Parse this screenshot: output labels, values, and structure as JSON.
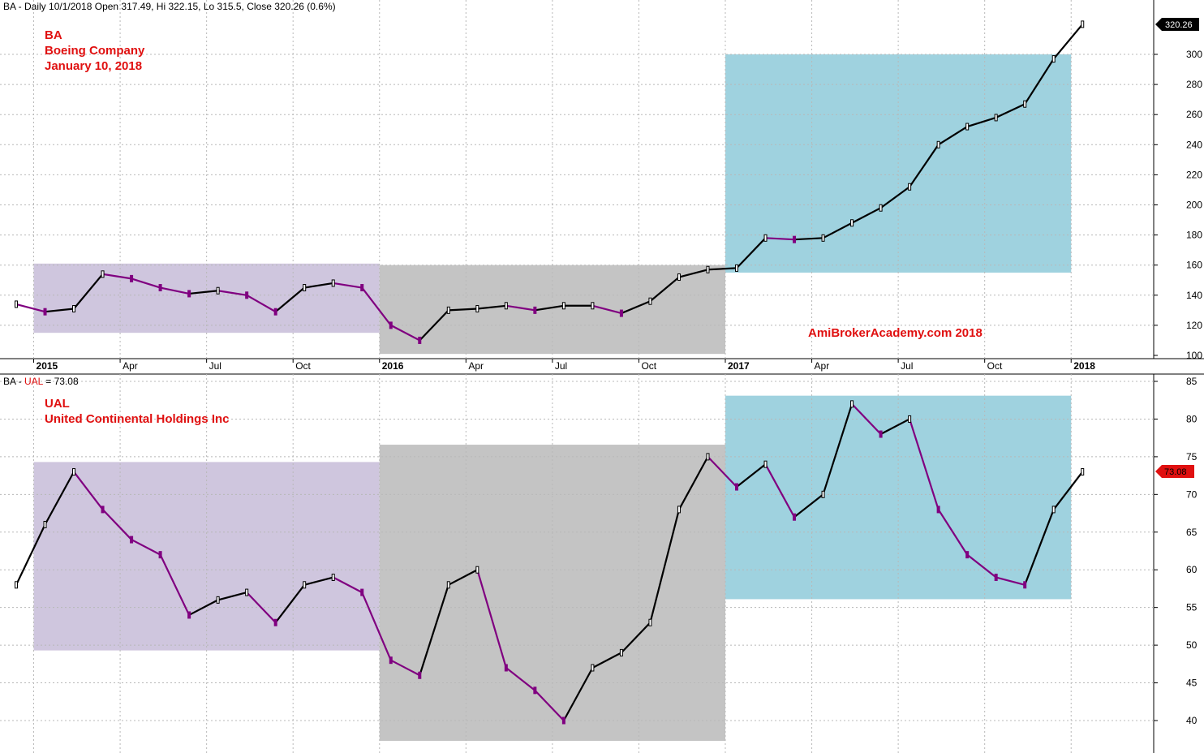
{
  "colors": {
    "background": "#ffffff",
    "price_up": "#000000",
    "price_down": "#800080",
    "box_purple": "#cfc6de",
    "box_gray": "#c4c4c4",
    "box_blue": "#9fd2df",
    "label_red": "#e01010",
    "grid": "#b8b8b8",
    "price_tag_bg": "#000000",
    "price_tag_red": "#e01010"
  },
  "chart_data": [
    {
      "type": "line",
      "panel": "top",
      "header": "BA - Daily 10/1/2018 Open 317.49, Hi 322.15, Lo 315.5, Close 320.26 (0.6%)",
      "annotation": [
        "BA",
        "Boeing Company",
        "January 10, 2018"
      ],
      "watermark": "AmiBrokerAcademy.com  2018",
      "price_tag": "320.26",
      "ylim": [
        100,
        320
      ],
      "y_ticks": [
        100,
        120,
        140,
        160,
        180,
        200,
        220,
        240,
        260,
        280,
        300
      ],
      "x_ticks": [
        "2015",
        "Apr",
        "Jul",
        "Oct",
        "2016",
        "Apr",
        "Jul",
        "Oct",
        "2017",
        "Apr",
        "Jul",
        "Oct",
        "2018"
      ],
      "series": [
        {
          "x": [
            "2014-12",
            "2015-01",
            "2015-02",
            "2015-03",
            "2015-04",
            "2015-05",
            "2015-06",
            "2015-07",
            "2015-08",
            "2015-09",
            "2015-10",
            "2015-11",
            "2015-12",
            "2016-01",
            "2016-02",
            "2016-03",
            "2016-04",
            "2016-05",
            "2016-06",
            "2016-07",
            "2016-08",
            "2016-09",
            "2016-10",
            "2016-11",
            "2016-12",
            "2017-01",
            "2017-02",
            "2017-03",
            "2017-04",
            "2017-05",
            "2017-06",
            "2017-07",
            "2017-08",
            "2017-09",
            "2017-10",
            "2017-11",
            "2017-12",
            "2018-01"
          ],
          "values": [
            134,
            129,
            131,
            154,
            151,
            145,
            141,
            143,
            140,
            129,
            145,
            148,
            145,
            120,
            110,
            130,
            131,
            133,
            130,
            133,
            133,
            128,
            136,
            152,
            157,
            158,
            178,
            177,
            178,
            188,
            198,
            212,
            240,
            252,
            258,
            267,
            297,
            320
          ]
        }
      ],
      "ranges": [
        {
          "from": "2015-01",
          "to": "2015-12",
          "low": 115,
          "high": 161
        },
        {
          "from": "2016-01",
          "to": "2016-12",
          "low": 101,
          "high": 160
        },
        {
          "from": "2017-01",
          "to": "2017-12",
          "low": 155,
          "high": 300
        }
      ]
    },
    {
      "type": "line",
      "panel": "bottom",
      "header_prefix": "BA - ",
      "header_symbol": "UAL",
      "header_suffix": " = 73.08",
      "annotation": [
        "UAL",
        "United Continental Holdings Inc"
      ],
      "price_tag": "73.08",
      "ylim": [
        37,
        86
      ],
      "y_ticks": [
        40,
        45,
        50,
        55,
        60,
        65,
        70,
        75,
        80,
        85
      ],
      "series": [
        {
          "x": [
            "2014-12",
            "2015-01",
            "2015-02",
            "2015-03",
            "2015-04",
            "2015-05",
            "2015-06",
            "2015-07",
            "2015-08",
            "2015-09",
            "2015-10",
            "2015-11",
            "2015-12",
            "2016-01",
            "2016-02",
            "2016-03",
            "2016-04",
            "2016-05",
            "2016-06",
            "2016-07",
            "2016-08",
            "2016-09",
            "2016-10",
            "2016-11",
            "2016-12",
            "2017-01",
            "2017-02",
            "2017-03",
            "2017-04",
            "2017-05",
            "2017-06",
            "2017-07",
            "2017-08",
            "2017-09",
            "2017-10",
            "2017-11",
            "2017-12",
            "2018-01"
          ],
          "values": [
            58,
            66,
            73,
            68,
            64,
            62,
            54,
            56,
            57,
            53,
            58,
            59,
            57,
            48,
            46,
            58,
            60,
            47,
            44,
            40,
            47,
            49,
            53,
            68,
            75,
            71,
            74,
            67,
            70,
            82,
            78,
            80,
            68,
            62,
            59,
            58,
            68,
            73
          ]
        }
      ],
      "ranges": [
        {
          "from": "2015-01",
          "to": "2015-12",
          "low": 49.3,
          "high": 74.3
        },
        {
          "from": "2016-01",
          "to": "2016-12",
          "low": 37.3,
          "high": 76.6
        },
        {
          "from": "2017-01",
          "to": "2017-12",
          "low": 56.1,
          "high": 83.1
        }
      ]
    }
  ]
}
